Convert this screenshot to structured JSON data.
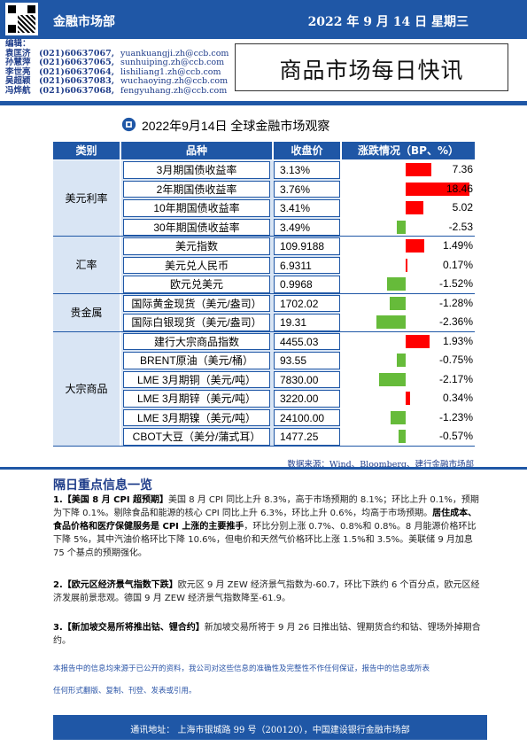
{
  "header": {
    "dept": "金融市场部",
    "date": "2022 年 9 月 14 日  星期三"
  },
  "editors": {
    "label": "编辑：",
    "list": [
      {
        "name": "袁匡济",
        "phone": "(021)60637067,",
        "email": "yuankuangji.zh@ccb.com"
      },
      {
        "name": "孙慧萍",
        "phone": "(021)60637065,",
        "email": "sunhuiping.zh@ccb.com"
      },
      {
        "name": "李世亮",
        "phone": "(021)60637064,",
        "email": "lishiliang1.zh@ccb.com"
      },
      {
        "name": "吴超颖",
        "phone": "(021)60637083,",
        "email": "wuchaoying.zh@ccb.com"
      },
      {
        "name": "冯烨航",
        "phone": "(021)60637068,",
        "email": "fengyuhang.zh@ccb.com"
      }
    ]
  },
  "title": "商品市场每日快讯",
  "table": {
    "title": "2022年9月14日  全球金融市场观察",
    "headers": {
      "cat": "类别",
      "name": "品种",
      "value": "收盘价",
      "change": "涨跌情况（BP、%）"
    },
    "groups": [
      {
        "category": "美元利率",
        "rows": [
          {
            "name": "3月期国债收益率",
            "value": "3.13%",
            "change": "7.36",
            "num": 7.36
          },
          {
            "name": "2年期国债收益率",
            "value": "3.76%",
            "change": "18.46",
            "num": 18.46
          },
          {
            "name": "10年期国债收益率",
            "value": "3.41%",
            "change": "5.02",
            "num": 5.02
          },
          {
            "name": "30年期国债收益率",
            "value": "3.49%",
            "change": "-2.53",
            "num": -2.53
          }
        ]
      },
      {
        "category": "汇率",
        "rows": [
          {
            "name": "美元指数",
            "value": "109.9188",
            "change": "1.49%",
            "num": 1.49
          },
          {
            "name": "美元兑人民币",
            "value": "6.9311",
            "change": "0.17%",
            "num": 0.17
          },
          {
            "name": "欧元兑美元",
            "value": "0.9968",
            "change": "-1.52%",
            "num": -1.52
          }
        ]
      },
      {
        "category": "贵金属",
        "rows": [
          {
            "name": "国际黄金现货（美元/盎司）",
            "value": "1702.02",
            "change": "-1.28%",
            "num": -1.28
          },
          {
            "name": "国际白银现货（美元/盎司）",
            "value": "19.31",
            "change": "-2.36%",
            "num": -2.36
          }
        ]
      },
      {
        "category": "大宗商品",
        "rows": [
          {
            "name": "建行大宗商品指数",
            "value": "4455.03",
            "change": "1.93%",
            "num": 1.93
          },
          {
            "name": "BRENT原油（美元/桶）",
            "value": "93.55",
            "change": "-0.75%",
            "num": -0.75
          },
          {
            "name": "LME 3月期铜（美元/吨）",
            "value": "7830.00",
            "change": "-2.17%",
            "num": -2.17
          },
          {
            "name": "LME 3月期锌（美元/吨）",
            "value": "3220.00",
            "change": "0.34%",
            "num": 0.34
          },
          {
            "name": "LME 3月期镍（美元/吨）",
            "value": "24100.00",
            "change": "-1.23%",
            "num": -1.23
          },
          {
            "name": "CBOT大豆（美分/蒲式耳）",
            "value": "1477.25",
            "change": "-0.57%",
            "num": -0.57
          }
        ]
      }
    ],
    "source": "数据来源：Wind、Bloomberg、建行金融市场部",
    "colors": {
      "up": "#ff0000",
      "down": "#66bb3a"
    }
  },
  "news": {
    "heading": "隔日重点信息一览",
    "items": [
      {
        "tag": "1.【美国 8 月 CPI 超预期】",
        "p1": "美国 8 月 CPI 同比上升 8.3%，高于市场预期的 8.1%；环比上升 0.1%，预期为下降 0.1%。剔除食品和能源的核心 CPI 同比上升 6.3%，环比上升 0.6%，均高于市场预期。",
        "bold": "居住成本、食品价格和医疗保健服务是 CPI 上涨的主要推手",
        "p2": "，环比分别上涨 0.7%、0.8%和 0.8%。8 月能源价格环比下降 5%，其中汽油价格环比下降 10.6%，但电价和天然气价格环比上涨 1.5%和 3.5%。美联储 9 月加息 75 个基点的预期强化。"
      },
      {
        "tag": "2.【欧元区经济景气指数下跌】",
        "p1": "欧元区 9 月 ZEW 经济景气指数为-60.7，环比下跌约 6 个百分点，欧元区经济发展前景悲观。德国 9 月 ZEW 经济景气指数降至-61.9。"
      },
      {
        "tag": "3.【新加坡交易所将推出钴、锂合约】",
        "p1": "新加坡交易所将于 9 月 26 日推出钴、锂期货合约和钴、锂场外掉期合约。"
      }
    ]
  },
  "disclaimer": {
    "line1": "本报告中的信息均来源于已公开的资料，我公司对这些信息的准确性及完整性不作任何保证，报告中的信息或所表",
    "line2": "任何形式翻版、复制、刊登、发表或引用。"
  },
  "footer": "通讯地址：  上海市银城路 99 号（200120），中国建设银行金融市场部"
}
